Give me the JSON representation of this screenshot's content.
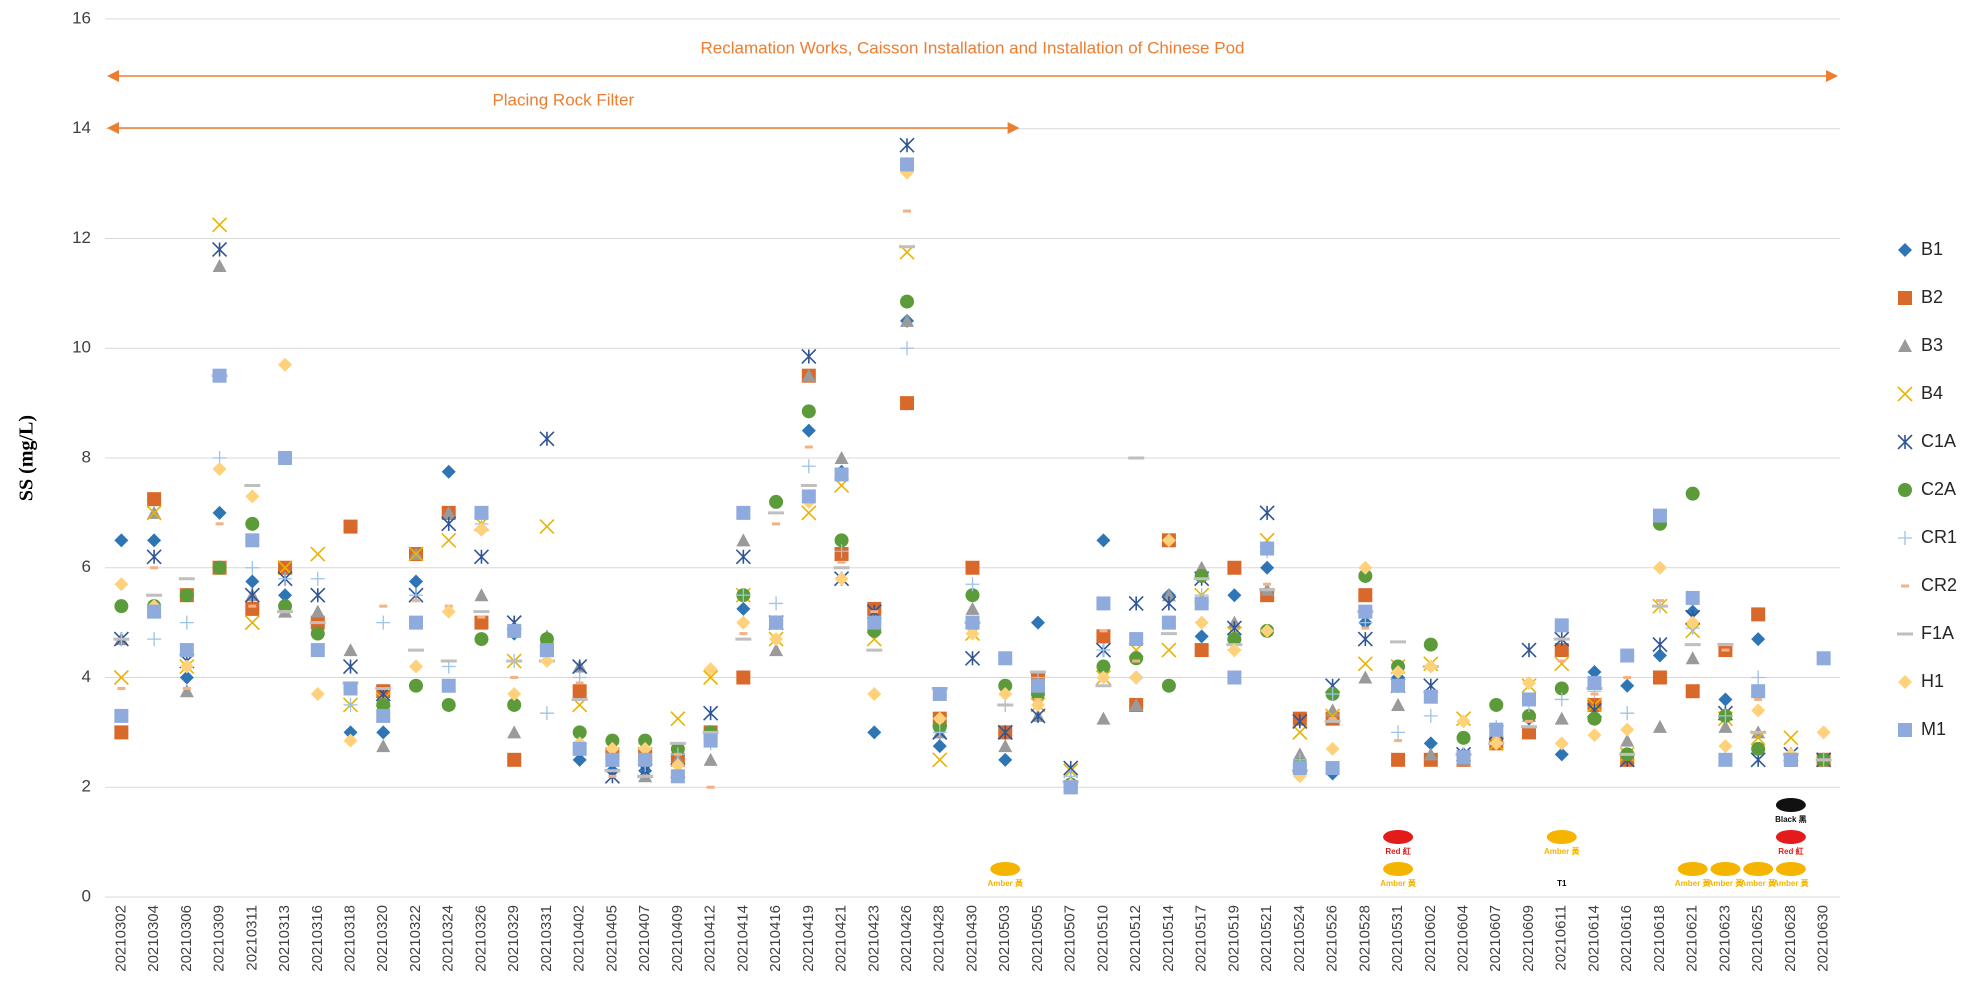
{
  "chart_data": {
    "type": "scatter",
    "y_label": "SS (mg/L)",
    "ylim": [
      0,
      16
    ],
    "yticks": [
      0,
      2,
      4,
      6,
      8,
      10,
      12,
      14,
      16
    ],
    "grid": true,
    "legend": "right",
    "categories": [
      "20210302",
      "20210304",
      "20210306",
      "20210309",
      "20210311",
      "20210313",
      "20210316",
      "20210318",
      "20210320",
      "20210322",
      "20210324",
      "20210326",
      "20210329",
      "20210331",
      "20210402",
      "20210405",
      "20210407",
      "20210409",
      "20210412",
      "20210414",
      "20210416",
      "20210419",
      "20210421",
      "20210423",
      "20210426",
      "20210428",
      "20210430",
      "20210503",
      "20210505",
      "20210507",
      "20210510",
      "20210512",
      "20210514",
      "20210517",
      "20210519",
      "20210521",
      "20210524",
      "20210526",
      "20210528",
      "20210531",
      "20210602",
      "20210604",
      "20210607",
      "20210609",
      "20210611",
      "20210614",
      "20210616",
      "20210618",
      "20210621",
      "20210623",
      "20210625",
      "20210628",
      "20210630"
    ],
    "annotations": [
      {
        "text": "Reclamation Works, Caisson Installation and Installation of Chinese Pod",
        "from": "20210302",
        "to": "20210630",
        "color": "#ed7d31"
      },
      {
        "text": "Placing Rock Filter",
        "from": "20210302",
        "to": "20210503",
        "color": "#ed7d31"
      }
    ],
    "weather_signals": [
      {
        "date": "20210503",
        "signals": [
          {
            "label": "Amber 黃",
            "color": "#f5b400"
          }
        ]
      },
      {
        "date": "20210531",
        "signals": [
          {
            "label": "Amber 黃",
            "color": "#f5b400"
          },
          {
            "label": "Red 紅",
            "color": "#e31b1b"
          }
        ]
      },
      {
        "date": "20210611",
        "signals": [
          {
            "label": "T1",
            "color": "#000000"
          },
          {
            "label": "Amber 黃",
            "color": "#f5b400"
          }
        ]
      },
      {
        "date": "20210621",
        "signals": [
          {
            "label": "Amber 黃",
            "color": "#f5b400"
          }
        ]
      },
      {
        "date": "20210623",
        "signals": [
          {
            "label": "Amber 黃",
            "color": "#f5b400"
          }
        ]
      },
      {
        "date": "20210625",
        "signals": [
          {
            "label": "Amber 黃",
            "color": "#f5b400"
          }
        ]
      },
      {
        "date": "20210628",
        "signals": [
          {
            "label": "Amber 黃",
            "color": "#f5b400"
          },
          {
            "label": "Red 紅",
            "color": "#e31b1b"
          },
          {
            "label": "Black 黑",
            "color": "#111111"
          }
        ]
      }
    ],
    "series": [
      {
        "name": "B1",
        "color": "#2e75b6",
        "marker": "diamond",
        "values": [
          6.5,
          6.5,
          4.0,
          7.0,
          5.75,
          5.5,
          5.0,
          3.0,
          3.0,
          5.75,
          7.75,
          6.7,
          4.8,
          4.6,
          2.5,
          2.3,
          2.3,
          2.2,
          3.0,
          5.25,
          5.0,
          8.5,
          7.75,
          3.0,
          10.5,
          2.75,
          5.0,
          2.5,
          5.0,
          2.0,
          6.5,
          4.0,
          5.5,
          4.75,
          5.5,
          6.0,
          2.5,
          2.25,
          5.0,
          4.0,
          2.8,
          2.6,
          2.9,
          3.25,
          2.6,
          4.1,
          3.85,
          4.4,
          5.2,
          3.6,
          4.7,
          2.5,
          2.5
        ]
      },
      {
        "name": "B2",
        "color": "#d9692a",
        "marker": "square",
        "values": [
          3.0,
          7.25,
          5.5,
          6.0,
          5.25,
          6.0,
          5.0,
          6.75,
          3.75,
          6.25,
          7.0,
          5.0,
          2.5,
          4.5,
          3.75,
          2.6,
          2.6,
          2.5,
          3.0,
          4.0,
          5.0,
          9.5,
          6.25,
          5.25,
          9.0,
          3.25,
          6.0,
          3.0,
          4.0,
          2.0,
          4.75,
          3.5,
          6.5,
          4.5,
          6.0,
          5.5,
          3.25,
          3.25,
          5.5,
          2.5,
          2.5,
          2.5,
          2.8,
          3.0,
          4.5,
          3.5,
          2.5,
          4.0,
          3.75,
          4.5,
          5.15,
          2.5,
          2.5
        ]
      },
      {
        "name": "B3",
        "color": "#9a9a9a",
        "marker": "triangle",
        "values": [
          4.7,
          7.0,
          3.75,
          11.5,
          5.5,
          5.2,
          5.2,
          4.5,
          2.75,
          6.25,
          7.0,
          5.5,
          3.0,
          4.75,
          4.2,
          2.6,
          2.2,
          2.5,
          2.5,
          6.5,
          4.5,
          9.5,
          8.0,
          5.0,
          10.5,
          3.0,
          5.25,
          2.75,
          3.3,
          2.1,
          3.25,
          3.5,
          5.5,
          6.0,
          5.0,
          5.6,
          2.6,
          3.4,
          4.0,
          3.5,
          2.6,
          2.5,
          2.9,
          3.3,
          3.25,
          3.3,
          2.85,
          3.1,
          4.35,
          3.1,
          3.0,
          2.6,
          2.5
        ]
      },
      {
        "name": "B4",
        "color": "#e8b400",
        "marker": "x",
        "values": [
          4.0,
          7.0,
          4.2,
          12.25,
          5.0,
          6.0,
          6.25,
          3.5,
          3.6,
          6.25,
          6.5,
          6.8,
          4.3,
          6.75,
          3.5,
          2.5,
          2.6,
          3.25,
          4.0,
          5.5,
          4.7,
          7.0,
          7.5,
          4.7,
          11.75,
          2.5,
          4.8,
          3.0,
          3.5,
          2.3,
          4.0,
          4.5,
          4.5,
          5.5,
          4.8,
          6.5,
          3.0,
          3.3,
          4.25,
          4.2,
          4.25,
          3.25,
          2.8,
          3.85,
          4.25,
          3.5,
          2.6,
          5.3,
          4.85,
          3.25,
          2.9,
          2.9,
          2.5
        ]
      },
      {
        "name": "C1A",
        "color": "#2f5597",
        "marker": "asterisk",
        "values": [
          4.7,
          6.2,
          4.3,
          11.8,
          5.5,
          5.8,
          5.5,
          4.2,
          3.7,
          5.5,
          6.8,
          6.2,
          5.0,
          8.35,
          4.2,
          2.2,
          2.3,
          2.3,
          3.35,
          6.2,
          5.0,
          9.85,
          5.8,
          5.2,
          13.7,
          3.0,
          4.35,
          3.0,
          3.3,
          2.35,
          4.5,
          5.35,
          5.35,
          5.8,
          4.9,
          7.0,
          3.2,
          3.85,
          4.7,
          3.85,
          3.85,
          2.6,
          3.0,
          4.5,
          4.7,
          3.4,
          2.5,
          4.6,
          5.1,
          3.35,
          2.5,
          2.6,
          2.5
        ]
      },
      {
        "name": "C2A",
        "color": "#5b9b3a",
        "marker": "circle",
        "values": [
          5.3,
          5.3,
          5.5,
          6.0,
          6.8,
          5.3,
          4.8,
          3.8,
          3.5,
          3.85,
          3.5,
          4.7,
          3.5,
          4.7,
          3.0,
          2.85,
          2.85,
          2.7,
          3.0,
          5.5,
          7.2,
          8.85,
          6.5,
          4.85,
          10.85,
          3.1,
          5.5,
          3.85,
          3.7,
          2.05,
          4.2,
          4.35,
          3.85,
          5.85,
          4.7,
          4.85,
          2.4,
          3.7,
          5.85,
          4.2,
          4.6,
          2.9,
          3.5,
          3.3,
          3.8,
          3.25,
          2.6,
          6.8,
          7.35,
          3.3,
          2.7,
          2.5,
          2.5
        ]
      },
      {
        "name": "CR1",
        "color": "#9dc3e6",
        "marker": "plus",
        "values": [
          4.7,
          4.7,
          5.0,
          8.0,
          6.0,
          5.8,
          5.8,
          3.5,
          5.0,
          5.5,
          4.2,
          6.8,
          4.3,
          3.35,
          4.0,
          2.5,
          2.4,
          2.6,
          2.8,
          5.5,
          5.35,
          7.85,
          6.3,
          5.0,
          10.0,
          3.0,
          5.7,
          3.5,
          4.0,
          2.2,
          4.5,
          4.0,
          5.0,
          5.5,
          4.5,
          6.3,
          2.5,
          3.7,
          5.0,
          3.0,
          3.3,
          2.6,
          3.1,
          3.5,
          3.6,
          3.75,
          3.35,
          5.3,
          4.9,
          3.3,
          4.0,
          2.5,
          2.5
        ]
      },
      {
        "name": "CR2",
        "color": "#f4b183",
        "marker": "dash",
        "values": [
          3.8,
          6.0,
          3.8,
          6.8,
          5.3,
          5.2,
          4.4,
          3.8,
          5.3,
          5.4,
          5.3,
          5.1,
          4.0,
          4.3,
          3.9,
          2.2,
          2.2,
          2.6,
          2.0,
          4.8,
          6.8,
          8.2,
          6.1,
          5.2,
          12.5,
          3.2,
          4.85,
          3.5,
          3.6,
          2.1,
          4.85,
          4.3,
          6.5,
          5.0,
          4.5,
          5.7,
          2.35,
          3.25,
          4.9,
          2.85,
          4.2,
          2.6,
          2.9,
          3.2,
          4.3,
          3.7,
          4.0,
          5.4,
          5.0,
          4.5,
          3.6,
          2.5,
          2.5
        ]
      },
      {
        "name": "F1A",
        "color": "#bfbfbf",
        "marker": "longdash",
        "values": [
          4.7,
          5.5,
          5.8,
          9.5,
          7.5,
          5.2,
          5.0,
          3.9,
          3.8,
          4.5,
          4.3,
          5.2,
          4.3,
          4.3,
          3.6,
          2.3,
          2.2,
          2.8,
          3.0,
          4.7,
          7.0,
          7.5,
          6.0,
          4.5,
          11.85,
          3.8,
          5.0,
          3.5,
          4.1,
          2.1,
          3.85,
          8.0,
          4.8,
          5.8,
          4.6,
          5.6,
          2.3,
          3.2,
          5.2,
          4.65,
          4.2,
          2.6,
          2.8,
          3.1,
          4.7,
          3.8,
          2.6,
          5.3,
          4.6,
          4.6,
          3.0,
          2.6,
          2.5
        ]
      },
      {
        "name": "H1",
        "color": "#ffd17a",
        "marker": "diamond",
        "values": [
          5.7,
          5.3,
          4.2,
          7.8,
          7.3,
          9.7,
          3.7,
          2.85,
          3.3,
          4.2,
          5.2,
          6.7,
          3.7,
          4.3,
          2.8,
          2.7,
          2.7,
          2.4,
          4.15,
          5.0,
          4.7,
          7.2,
          5.8,
          3.7,
          13.2,
          3.25,
          4.8,
          3.7,
          3.5,
          2.05,
          4.0,
          4.0,
          6.5,
          5.0,
          4.5,
          4.85,
          2.2,
          2.7,
          6.0,
          4.1,
          4.2,
          3.2,
          2.8,
          3.9,
          2.8,
          2.95,
          3.05,
          6.0,
          5.0,
          2.75,
          3.4,
          2.6,
          3.0
        ]
      },
      {
        "name": "M1",
        "color": "#8faadc",
        "marker": "square",
        "values": [
          3.3,
          5.2,
          4.5,
          9.5,
          6.5,
          8.0,
          4.5,
          3.8,
          3.3,
          5.0,
          3.85,
          7.0,
          4.85,
          4.5,
          2.7,
          2.5,
          2.5,
          2.2,
          2.85,
          7.0,
          5.0,
          7.3,
          7.7,
          5.0,
          13.35,
          3.7,
          5.0,
          4.35,
          3.85,
          2.0,
          5.35,
          4.7,
          5.0,
          5.35,
          4.0,
          6.35,
          2.35,
          2.35,
          5.2,
          3.85,
          3.65,
          2.55,
          3.05,
          3.6,
          4.95,
          3.9,
          4.4,
          6.95,
          5.45,
          2.5,
          3.75,
          2.5,
          4.35
        ]
      }
    ]
  }
}
